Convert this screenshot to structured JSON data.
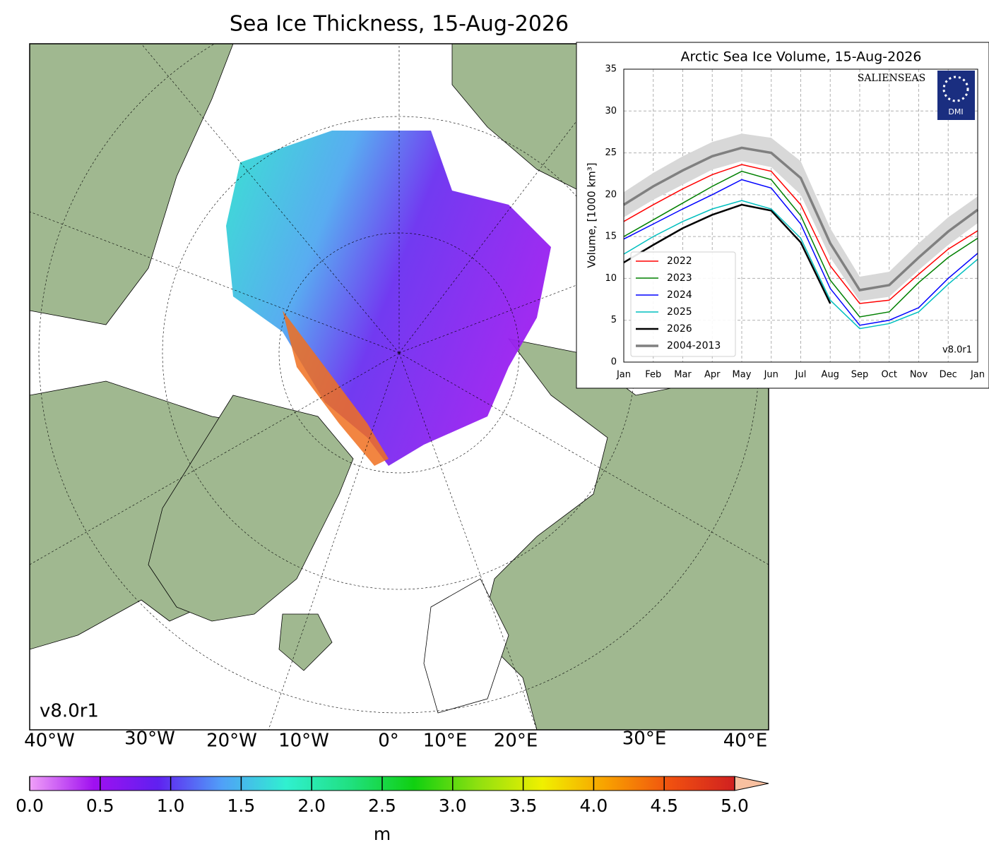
{
  "chart_data": [
    {
      "type": "map",
      "title": "Sea Ice Thickness, 15-Aug-2026",
      "version": "v8.0r1",
      "lon_labels": [
        "40°W",
        "30°W",
        "20°W",
        "10°W",
        "0°",
        "10°E",
        "20°E",
        "30°E",
        "40°E"
      ],
      "colorbar": {
        "label": "m",
        "xlim": [
          0,
          5
        ],
        "ticks": [
          {
            "value": 0,
            "label": "0.0"
          },
          0.5,
          {
            "value": 1,
            "label": "1.0"
          },
          1.5,
          {
            "value": 2,
            "label": "2.0"
          },
          2.5,
          {
            "value": 3,
            "label": "3.0"
          },
          3.5,
          {
            "value": 4,
            "label": "4.0"
          },
          4.5,
          {
            "value": 5,
            "label": "5.0"
          }
        ],
        "colors": [
          "#f0a0f8",
          "#a010f0",
          "#6020f0",
          "#50a0f8",
          "#30f0d0",
          "#20e080",
          "#10d010",
          "#90e010",
          "#f0f000",
          "#f8a000",
          "#f05010",
          "#d02020",
          "#f8c0a0"
        ]
      }
    },
    {
      "type": "line",
      "title": "Arctic Sea Ice Volume, 15-Aug-2026",
      "y_label": "Volume, [1000 km³]",
      "version": "v8.0r1",
      "logos": [
        "SALIENSEAS",
        "DMI"
      ],
      "x": [
        0,
        1,
        2,
        3,
        4,
        5,
        6,
        7,
        8,
        9,
        10,
        11,
        12
      ],
      "xlim": [
        0,
        12
      ],
      "xticks": [
        {
          "value": 0,
          "label": "Jan"
        },
        {
          "value": 1,
          "label": "Feb"
        },
        {
          "value": 2,
          "label": "Mar"
        },
        {
          "value": 3,
          "label": "Apr"
        },
        {
          "value": 4,
          "label": "May"
        },
        {
          "value": 5,
          "label": "Jun"
        },
        {
          "value": 6,
          "label": "Jul"
        },
        {
          "value": 7,
          "label": "Aug"
        },
        {
          "value": 8,
          "label": "Sep"
        },
        {
          "value": 9,
          "label": "Oct"
        },
        {
          "value": 10,
          "label": "Nov"
        },
        {
          "value": 11,
          "label": "Dec"
        },
        {
          "value": 12,
          "label": "Jan"
        }
      ],
      "ylim": [
        0,
        35
      ],
      "yticks": [
        0,
        5,
        10,
        15,
        20,
        25,
        30,
        35
      ],
      "grid": true,
      "legend": "lower left",
      "band": {
        "color": "#d8d8d8",
        "low": [
          17.3,
          19.4,
          21.2,
          23.0,
          24.0,
          23.3,
          20.0,
          12.5,
          7.3,
          7.8,
          11.0,
          14.0,
          16.6
        ],
        "high": [
          20.3,
          22.6,
          24.6,
          26.3,
          27.3,
          26.8,
          24.0,
          16.0,
          10.2,
          10.8,
          14.2,
          17.3,
          19.8
        ]
      },
      "series": [
        {
          "name": "2022",
          "color": "#ff0000",
          "width": 1.5,
          "values": [
            16.8,
            18.8,
            20.7,
            22.4,
            23.6,
            22.8,
            18.8,
            11.5,
            7.0,
            7.4,
            10.5,
            13.5,
            15.7
          ]
        },
        {
          "name": "2023",
          "color": "#008000",
          "width": 1.5,
          "values": [
            15.0,
            17.0,
            19.0,
            21.0,
            22.8,
            21.8,
            17.5,
            9.8,
            5.4,
            6.0,
            9.5,
            12.5,
            14.8
          ]
        },
        {
          "name": "2024",
          "color": "#0000ff",
          "width": 1.5,
          "values": [
            14.7,
            16.5,
            18.3,
            20.0,
            21.8,
            20.8,
            16.5,
            8.8,
            4.4,
            5.0,
            6.5,
            10.0,
            13.0
          ]
        },
        {
          "name": "2025",
          "color": "#00bfbf",
          "width": 1.5,
          "values": [
            12.9,
            15.0,
            16.8,
            18.3,
            19.3,
            18.3,
            14.8,
            7.4,
            4.0,
            4.6,
            6.0,
            9.3,
            12.3
          ]
        },
        {
          "name": "2026",
          "color": "#000000",
          "width": 2.5,
          "values": [
            11.9,
            14.0,
            16.0,
            17.6,
            18.8,
            18.1,
            14.3,
            7.0,
            null,
            null,
            null,
            null,
            null
          ]
        },
        {
          "name": "2004-2013",
          "color": "#808080",
          "width": 3.5,
          "values": [
            18.8,
            21.0,
            22.9,
            24.6,
            25.6,
            25.0,
            22.0,
            14.2,
            8.6,
            9.2,
            12.5,
            15.6,
            18.2
          ]
        }
      ]
    }
  ]
}
